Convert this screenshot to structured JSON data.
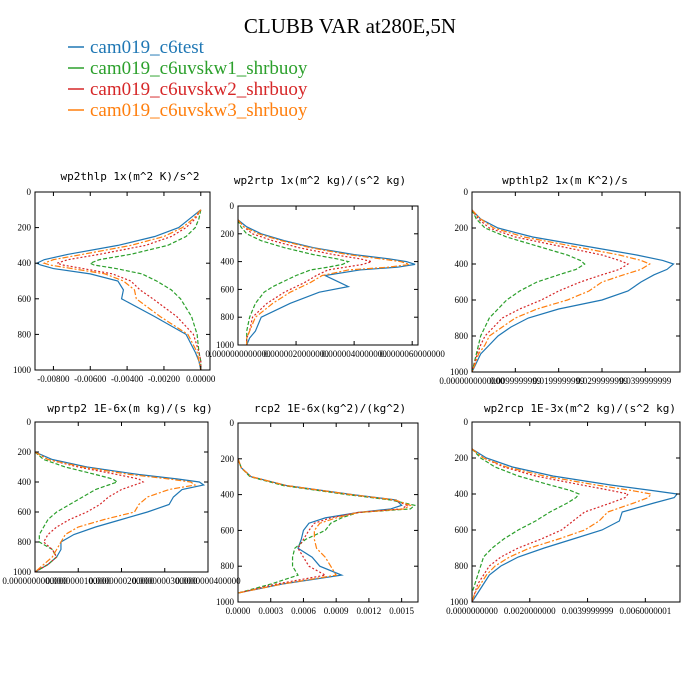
{
  "figure": {
    "title": "CLUBB VAR at280E,5N",
    "legend": [
      {
        "name": "cam019_c6test",
        "color": "#1f77b4"
      },
      {
        "name": "cam019_c6uvskw1_shrbuoy",
        "color": "#2ca02c"
      },
      {
        "name": "cam019_c6uvskw2_shrbuoy",
        "color": "#d62728"
      },
      {
        "name": "cam019_c6uvskw3_shrbuoy",
        "color": "#ff7f0e"
      }
    ]
  },
  "chart_data": [
    {
      "type": "line",
      "title": "wp2thlp   1x(m^2 K)/s^2",
      "xlim": [
        -0.009,
        0.0005
      ],
      "ylim": [
        0,
        1000
      ],
      "y_inverted": true,
      "xticks": [
        "-0.00800",
        "-0.00600",
        "-0.00400",
        "-0.00200",
        "0.00000"
      ],
      "xtick_values": [
        -0.008,
        -0.006,
        -0.004,
        -0.002,
        0.0
      ],
      "yticks": [
        "0",
        "200",
        "400",
        "600",
        "800",
        "1000"
      ],
      "ytick_values": [
        0,
        200,
        400,
        600,
        800,
        1000
      ],
      "y": [
        100,
        150,
        200,
        250,
        300,
        350,
        380,
        400,
        410,
        430,
        460,
        500,
        550,
        600,
        700,
        800,
        900,
        950,
        1000
      ],
      "series": [
        {
          "color": "#1f77b4",
          "dash": "",
          "values": [
            0.0,
            -0.0006,
            -0.0012,
            -0.0025,
            -0.0045,
            -0.0072,
            -0.0085,
            -0.0089,
            -0.0087,
            -0.008,
            -0.006,
            -0.0045,
            -0.0042,
            -0.0043,
            -0.0025,
            -0.0008,
            -0.0003,
            -0.0001,
            0.0
          ]
        },
        {
          "color": "#2ca02c",
          "dash": "4,2",
          "values": [
            0.0,
            -0.0001,
            -0.0003,
            -0.0008,
            -0.0018,
            -0.0038,
            -0.0055,
            -0.006,
            -0.0058,
            -0.0046,
            -0.0032,
            -0.0024,
            -0.0016,
            -0.0011,
            -0.0005,
            -0.0002,
            -0.0001,
            0.0,
            0.0
          ]
        },
        {
          "color": "#d62728",
          "dash": "2,2",
          "values": [
            0.0,
            -0.0003,
            -0.0008,
            -0.0016,
            -0.003,
            -0.0055,
            -0.0072,
            -0.0078,
            -0.0075,
            -0.0064,
            -0.0048,
            -0.0038,
            -0.0033,
            -0.0026,
            -0.0013,
            -0.0004,
            -0.0001,
            0.0,
            0.0
          ]
        },
        {
          "color": "#ff7f0e",
          "dash": "6,2,2,2",
          "values": [
            0.0,
            -0.0004,
            -0.001,
            -0.002,
            -0.0038,
            -0.0064,
            -0.008,
            -0.0085,
            -0.0082,
            -0.007,
            -0.0052,
            -0.0042,
            -0.0036,
            -0.0035,
            -0.0022,
            -0.0007,
            -0.0002,
            -0.0001,
            0.0
          ]
        }
      ]
    },
    {
      "type": "line",
      "title": "wp2rtp   1x(m^2 kg)/(s^2 kg)",
      "xlim": [
        0.0,
        6.2e-06
      ],
      "ylim": [
        0,
        1000
      ],
      "y_inverted": true,
      "xticks": [
        "0.0000000000000",
        "0.0000020000000",
        "0.0000040000000",
        "0.0000060000000"
      ],
      "xtick_values": [
        0.0,
        2e-06,
        4e-06,
        6e-06
      ],
      "yticks": [
        "0",
        "200",
        "400",
        "600",
        "800",
        "1000"
      ],
      "ytick_values": [
        0,
        200,
        400,
        600,
        800,
        1000
      ],
      "y": [
        100,
        150,
        200,
        250,
        300,
        350,
        380,
        400,
        420,
        440,
        460,
        500,
        550,
        580,
        620,
        700,
        800,
        900,
        950,
        1000
      ],
      "series": [
        {
          "color": "#1f77b4",
          "dash": "",
          "values": [
            0.0,
            3e-07,
            8e-07,
            1.6e-06,
            2.6e-06,
            4e-06,
            5.2e-06,
            5.8e-06,
            6.1e-06,
            5.5e-06,
            4.2e-06,
            3e-06,
            3.5e-06,
            3.8e-06,
            2.8e-06,
            1.8e-06,
            8e-07,
            6e-07,
            4e-07,
            3e-07
          ]
        },
        {
          "color": "#2ca02c",
          "dash": "4,2",
          "values": [
            0.0,
            1e-07,
            3e-07,
            8e-07,
            1.6e-06,
            2.6e-06,
            3.4e-06,
            3.8e-06,
            3.6e-06,
            3.1e-06,
            2.5e-06,
            2e-06,
            1.5e-06,
            1.2e-06,
            9e-07,
            6e-07,
            4e-07,
            3e-07,
            3e-07,
            3e-07
          ]
        },
        {
          "color": "#d62728",
          "dash": "2,2",
          "values": [
            0.0,
            2e-07,
            5e-07,
            1.2e-06,
            2.1e-06,
            3.3e-06,
            4.2e-06,
            4.6e-06,
            4.3e-06,
            3.7e-06,
            3.1e-06,
            2.7e-06,
            2.3e-06,
            2e-06,
            1.6e-06,
            1e-06,
            5e-07,
            4e-07,
            3e-07,
            3e-07
          ]
        },
        {
          "color": "#ff7f0e",
          "dash": "6,2,2,2",
          "values": [
            0.0,
            2e-07,
            7e-07,
            1.5e-06,
            2.5e-06,
            3.8e-06,
            4.9e-06,
            5.6e-06,
            5.9e-06,
            5.2e-06,
            3.8e-06,
            2.9e-06,
            2.5e-06,
            2.2e-06,
            1.8e-06,
            1.2e-06,
            6e-07,
            4e-07,
            3e-07,
            3e-07
          ]
        }
      ]
    },
    {
      "type": "line",
      "title": "wpthlp2   1x(m K^2)/s",
      "xlim": [
        0.0,
        0.048
      ],
      "ylim": [
        0,
        1000
      ],
      "y_inverted": true,
      "xticks": [
        "0.0000000000000",
        "0.0099999999",
        "0.0199999999",
        "0.0299999999",
        "0.0399999999"
      ],
      "xtick_values": [
        0.0,
        0.01,
        0.02,
        0.03,
        0.04
      ],
      "yticks": [
        "0",
        "200",
        "400",
        "600",
        "800",
        "1000"
      ],
      "ytick_values": [
        0,
        200,
        400,
        600,
        800,
        1000
      ],
      "y": [
        100,
        150,
        200,
        250,
        300,
        350,
        380,
        400,
        430,
        460,
        500,
        550,
        600,
        650,
        700,
        750,
        800,
        850,
        900,
        950,
        1000
      ],
      "series": [
        {
          "color": "#1f77b4",
          "dash": "",
          "values": [
            0.0,
            0.002,
            0.006,
            0.014,
            0.026,
            0.038,
            0.044,
            0.0465,
            0.045,
            0.042,
            0.039,
            0.036,
            0.03,
            0.02,
            0.013,
            0.009,
            0.006,
            0.004,
            0.002,
            0.001,
            0.0
          ]
        },
        {
          "color": "#2ca02c",
          "dash": "4,2",
          "values": [
            0.0,
            0.001,
            0.003,
            0.008,
            0.015,
            0.022,
            0.025,
            0.026,
            0.024,
            0.02,
            0.015,
            0.011,
            0.008,
            0.006,
            0.004,
            0.003,
            0.002,
            0.0015,
            0.001,
            0.0005,
            0.0
          ]
        },
        {
          "color": "#d62728",
          "dash": "2,2",
          "values": [
            0.0,
            0.0015,
            0.004,
            0.01,
            0.02,
            0.03,
            0.034,
            0.036,
            0.034,
            0.03,
            0.025,
            0.02,
            0.016,
            0.011,
            0.007,
            0.005,
            0.003,
            0.002,
            0.0012,
            0.0006,
            0.0
          ]
        },
        {
          "color": "#ff7f0e",
          "dash": "6,2,2,2",
          "values": [
            0.0,
            0.002,
            0.005,
            0.012,
            0.023,
            0.034,
            0.039,
            0.041,
            0.039,
            0.035,
            0.03,
            0.027,
            0.022,
            0.015,
            0.01,
            0.007,
            0.004,
            0.003,
            0.0015,
            0.0008,
            0.0
          ]
        }
      ]
    },
    {
      "type": "line",
      "title": "wprtp2   1E-6x(m kg)/(s kg)",
      "xlim": [
        0.0,
        4e-08
      ],
      "ylim": [
        0,
        1000
      ],
      "y_inverted": true,
      "xticks": [
        "0.0000000000000",
        "0.0000000100000",
        "0.0000000200000",
        "0.0000000300000",
        "0.0000000400000"
      ],
      "xtick_values": [
        0.0,
        1e-08,
        2e-08,
        3e-08,
        4e-08
      ],
      "yticks": [
        "0",
        "200",
        "400",
        "600",
        "800",
        "1000"
      ],
      "ytick_values": [
        0,
        200,
        400,
        600,
        800,
        1000
      ],
      "y": [
        200,
        250,
        300,
        350,
        380,
        400,
        420,
        450,
        500,
        550,
        600,
        650,
        700,
        750,
        800,
        850,
        900,
        950,
        1000
      ],
      "series": [
        {
          "color": "#1f77b4",
          "dash": "",
          "values": [
            0.0,
            4e-09,
            1.2e-08,
            2.4e-08,
            3.3e-08,
            3.8e-08,
            3.9e-08,
            3.4e-08,
            3.2e-08,
            3.1e-08,
            2.6e-08,
            2e-08,
            1.4e-08,
            9e-09,
            6e-09,
            6e-09,
            5e-09,
            3e-09,
            0.0
          ]
        },
        {
          "color": "#2ca02c",
          "dash": "4,2",
          "values": [
            0.0,
            2e-09,
            7e-09,
            1.4e-08,
            1.8e-08,
            1.9e-08,
            1.7e-08,
            1.4e-08,
            1.1e-08,
            8e-09,
            5e-09,
            3e-09,
            2e-09,
            1e-09,
            1e-09,
            4e-09,
            5e-09,
            3e-09,
            0.0
          ]
        },
        {
          "color": "#d62728",
          "dash": "2,2",
          "values": [
            0.0,
            3e-09,
            1e-08,
            1.9e-08,
            2.4e-08,
            2.5e-08,
            2.3e-08,
            2e-08,
            1.7e-08,
            1.5e-08,
            1.2e-08,
            8e-09,
            5e-09,
            3e-09,
            2e-09,
            4e-09,
            5e-09,
            3e-09,
            0.0
          ]
        },
        {
          "color": "#ff7f0e",
          "dash": "6,2,2,2",
          "values": [
            0.0,
            3e-09,
            1.1e-08,
            2.2e-08,
            3.1e-08,
            3.6e-08,
            3.7e-08,
            3.1e-08,
            2.6e-08,
            2.4e-08,
            2.3e-08,
            1.6e-08,
            1e-08,
            7e-09,
            6e-09,
            5e-09,
            4e-09,
            2e-09,
            0.0
          ]
        }
      ]
    },
    {
      "type": "line",
      "title": "rcp2   1E-6x(kg^2)/(kg^2)",
      "xlim": [
        0.0,
        0.00165
      ],
      "ylim": [
        0,
        1000
      ],
      "y_inverted": true,
      "xticks": [
        "0.0000",
        "0.0003",
        "0.0006",
        "0.0009",
        "0.0012",
        "0.0015"
      ],
      "xtick_values": [
        0.0,
        0.0003,
        0.0006,
        0.0009,
        0.0012,
        0.0015
      ],
      "yticks": [
        "0",
        "200",
        "400",
        "600",
        "800",
        "1000"
      ],
      "ytick_values": [
        0,
        200,
        400,
        600,
        800,
        1000
      ],
      "y": [
        200,
        250,
        300,
        350,
        400,
        430,
        460,
        480,
        500,
        530,
        560,
        600,
        650,
        700,
        750,
        800,
        850,
        900,
        950
      ],
      "series": [
        {
          "color": "#1f77b4",
          "dash": "",
          "values": [
            0.0,
            3e-05,
            0.00012,
            0.00045,
            0.00105,
            0.00145,
            0.0015,
            0.0014,
            0.0011,
            0.0008,
            0.00065,
            0.0006,
            0.00058,
            0.00055,
            0.00068,
            0.00075,
            0.00095,
            0.0004,
            0.0
          ]
        },
        {
          "color": "#2ca02c",
          "dash": "4,2",
          "values": [
            0.0,
            3e-05,
            0.00011,
            0.00042,
            0.001,
            0.0014,
            0.00162,
            0.00158,
            0.0011,
            0.00095,
            0.00085,
            0.0008,
            0.00062,
            0.00052,
            0.0005,
            0.0005,
            0.00055,
            0.0003,
            0.0
          ]
        },
        {
          "color": "#d62728",
          "dash": "2,2",
          "values": [
            0.0,
            3e-05,
            0.00012,
            0.00044,
            0.00103,
            0.00143,
            0.00155,
            0.0015,
            0.0011,
            0.00085,
            0.0007,
            0.00065,
            0.0006,
            0.00055,
            0.0006,
            0.00065,
            0.0008,
            0.00035,
            0.0
          ]
        },
        {
          "color": "#ff7f0e",
          "dash": "6,2,2,2",
          "values": [
            0.0,
            3e-05,
            0.00012,
            0.00045,
            0.00104,
            0.00144,
            0.00158,
            0.00152,
            0.0011,
            0.0009,
            0.00075,
            0.0007,
            0.0007,
            0.00072,
            0.0008,
            0.00085,
            0.0009,
            0.0004,
            0.0
          ]
        }
      ]
    },
    {
      "type": "line",
      "title": "wp2rcp   1E-3x(m^2 kg)/(s^2 kg)",
      "xlim": [
        0.0,
        0.0072
      ],
      "ylim": [
        0,
        1000
      ],
      "y_inverted": true,
      "xticks": [
        "0.0000000000",
        "0.0020000000",
        "0.0039999999",
        "0.0060000001"
      ],
      "xtick_values": [
        0.0,
        0.002,
        0.004,
        0.006
      ],
      "yticks": [
        "0",
        "200",
        "400",
        "600",
        "800",
        "1000"
      ],
      "ytick_values": [
        0,
        200,
        400,
        600,
        800,
        1000
      ],
      "y": [
        150,
        200,
        250,
        300,
        350,
        380,
        400,
        420,
        450,
        500,
        550,
        600,
        650,
        700,
        750,
        800,
        850,
        900,
        950,
        1000
      ],
      "series": [
        {
          "color": "#1f77b4",
          "dash": "",
          "values": [
            0.0,
            0.0005,
            0.0014,
            0.0028,
            0.0048,
            0.0062,
            0.0071,
            0.007,
            0.0063,
            0.0052,
            0.0051,
            0.0045,
            0.0035,
            0.0025,
            0.0016,
            0.001,
            0.0006,
            0.0004,
            0.0002,
            0.0
          ]
        },
        {
          "color": "#2ca02c",
          "dash": "4,2",
          "values": [
            0.0,
            0.0003,
            0.0008,
            0.0016,
            0.0027,
            0.0034,
            0.0037,
            0.0036,
            0.0033,
            0.0027,
            0.0022,
            0.0016,
            0.0011,
            0.0007,
            0.0004,
            0.0003,
            0.0002,
            0.0001,
            0.0,
            0.0
          ]
        },
        {
          "color": "#d62728",
          "dash": "2,2",
          "values": [
            0.0,
            0.0004,
            0.0011,
            0.0022,
            0.0038,
            0.0048,
            0.0054,
            0.0053,
            0.0048,
            0.0039,
            0.0035,
            0.0031,
            0.0024,
            0.0016,
            0.001,
            0.0006,
            0.0004,
            0.0002,
            0.0001,
            0.0
          ]
        },
        {
          "color": "#ff7f0e",
          "dash": "6,2,2,2",
          "values": [
            0.0,
            0.0004,
            0.0012,
            0.0025,
            0.0043,
            0.0055,
            0.0062,
            0.0061,
            0.0056,
            0.0047,
            0.0044,
            0.0039,
            0.003,
            0.002,
            0.0013,
            0.0008,
            0.0005,
            0.0003,
            0.0001,
            0.0
          ]
        }
      ]
    }
  ]
}
